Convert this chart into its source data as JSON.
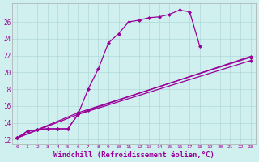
{
  "bg_color": "#d0f0f0",
  "line_color": "#990099",
  "grid_color": "#b0d8d8",
  "xlabel": "Windchill (Refroidissement éolien,°C)",
  "xlabel_fontsize": 6.5,
  "xlabel_color": "#990099",
  "yticks": [
    12,
    14,
    16,
    18,
    20,
    22,
    24,
    26
  ],
  "xlim": [
    -0.5,
    23.5
  ],
  "ylim": [
    11.5,
    28.2
  ],
  "line1_x": [
    0,
    1,
    2,
    3,
    4,
    5,
    6,
    7,
    8,
    9,
    10,
    11,
    12,
    13,
    14,
    15,
    16,
    17,
    18
  ],
  "line1_y": [
    12.2,
    13.0,
    13.2,
    13.3,
    13.3,
    13.3,
    15.0,
    18.0,
    20.4,
    23.5,
    24.6,
    26.0,
    26.2,
    26.5,
    26.6,
    26.9,
    27.4,
    27.2,
    23.1
  ],
  "line2_x": [
    0,
    1,
    2,
    3,
    4,
    5,
    6,
    7,
    23
  ],
  "line2_y": [
    12.2,
    13.0,
    13.2,
    13.3,
    13.3,
    13.3,
    15.0,
    15.5,
    21.9
  ],
  "line3_x": [
    0,
    6,
    23
  ],
  "line3_y": [
    12.2,
    15.0,
    21.4
  ],
  "line4_x": [
    0,
    6,
    23
  ],
  "line4_y": [
    12.2,
    15.2,
    21.8
  ],
  "marker": "D",
  "markersize": 2.0,
  "linewidth": 0.9
}
